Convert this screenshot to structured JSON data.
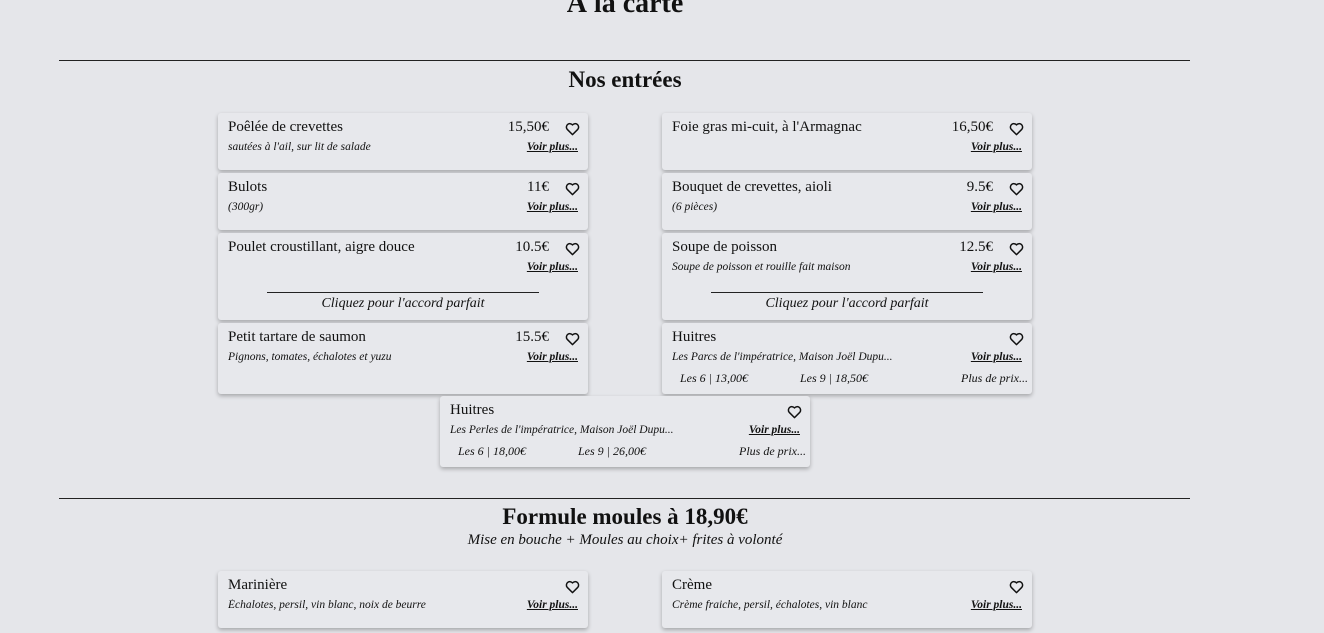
{
  "page": {
    "title": "À la carte"
  },
  "entrees": {
    "title": "Nos entrées",
    "items": [
      {
        "name": "Poêlée de crevettes",
        "price": "15,50€",
        "desc": "sautées à l'ail, sur lit de salade",
        "more": "Voir plus..."
      },
      {
        "name": "Foie gras mi-cuit, à l'Armagnac",
        "price": "16,50€",
        "desc": "",
        "more": "Voir plus..."
      },
      {
        "name": "Bulots",
        "price": "11€",
        "desc": "(300gr)",
        "more": "Voir plus..."
      },
      {
        "name": "Bouquet de crevettes, aioli",
        "price": "9.5€",
        "desc": "(6 pièces)",
        "more": "Voir plus..."
      },
      {
        "name": "Poulet croustillant, aigre douce",
        "price": "10.5€",
        "desc": "",
        "more": "Voir plus...",
        "accord": "Cliquez pour l'accord parfait"
      },
      {
        "name": "Soupe de poisson",
        "price": "12.5€",
        "desc": "Soupe de poisson et rouille fait maison",
        "more": "Voir plus...",
        "accord": "Cliquez pour l'accord parfait"
      },
      {
        "name": "Petit tartare de saumon",
        "price": "15.5€",
        "desc": "Pignons, tomates, échalotes et yuzu",
        "more": "Voir plus..."
      },
      {
        "name": "Huitres",
        "price": "",
        "desc": "Les Parcs de l'impératrice, Maison Joël Dupu...",
        "more": "Voir plus...",
        "p1": "Les 6 | 13,00€",
        "p2": "Les 9 | 18,50€",
        "pm": "Plus de prix..."
      },
      {
        "name": "Huitres",
        "price": "",
        "desc": "Les Perles de l'impératrice, Maison Joël Dupu...",
        "more": "Voir plus...",
        "p1": "Les 6 | 18,00€",
        "p2": "Les 9 | 26,00€",
        "pm": "Plus de prix..."
      }
    ]
  },
  "moules": {
    "title": "Formule moules à 18,90€",
    "subtitle": "Mise en bouche + Moules au choix+ frites à volonté",
    "items": [
      {
        "name": "Marinière",
        "desc": "Échalotes, persil, vin blanc, noix de beurre",
        "more": "Voir plus..."
      },
      {
        "name": "Crème",
        "desc": "Crème fraiche, persil, échalotes, vin blanc",
        "more": "Voir plus..."
      }
    ]
  }
}
